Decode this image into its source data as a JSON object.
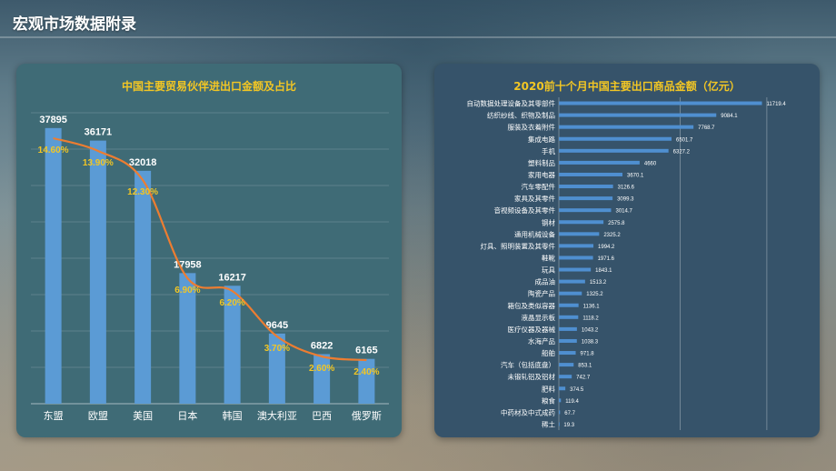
{
  "page": {
    "title": "宏观市场数据附录"
  },
  "colors": {
    "bar_left": "#5b9bd5",
    "line": "#ed7d31",
    "pct_label": "#f2c624",
    "bar_right": "#4f8fd0",
    "title": "#f2c624",
    "text": "#ffffff"
  },
  "chart_data": [
    {
      "type": "bar",
      "title": "中国主要贸易伙伴进出口金额及占比",
      "categories": [
        "东盟",
        "欧盟",
        "美国",
        "日本",
        "韩国",
        "澳大利亚",
        "巴西",
        "俄罗斯"
      ],
      "series": [
        {
          "values": [
            37895,
            36171,
            32018,
            17958,
            16217,
            9645,
            6822,
            6165
          ]
        },
        {
          "type": "line",
          "values": [
            14.6,
            13.9,
            12.3,
            6.9,
            6.2,
            3.7,
            2.6,
            2.4
          ]
        }
      ],
      "value_labels": [
        "37895",
        "36171",
        "32018",
        "17958",
        "16217",
        "9645",
        "6822",
        "6165"
      ],
      "pct_labels": [
        "14.60%",
        "13.90%",
        "12.30%",
        "6.90%",
        "6.20%",
        "3.70%",
        "2.60%",
        "2.40%"
      ],
      "ylim": [
        0,
        40000
      ],
      "pct_ylim": [
        0,
        16
      ],
      "grid": true
    },
    {
      "type": "bar",
      "orientation": "horizontal",
      "title": "2020前十个月中国主要出口商品金额（亿元）",
      "categories": [
        "自动数据处理设备及其零部件",
        "纺织纱线、织物及制品",
        "服装及衣着附件",
        "集成电路",
        "手机",
        "塑料制品",
        "家用电器",
        "汽车零配件",
        "家具及其零件",
        "音视频设备及其零件",
        "钢材",
        "通用机械设备",
        "灯具、照明装置及其零件",
        "鞋靴",
        "玩具",
        "成品油",
        "陶瓷产品",
        "箱包及类似容器",
        "液晶显示板",
        "医疗仪器及器械",
        "水海产品",
        "船舶",
        "汽车（包括底盘）",
        "未锻轧铝及铝材",
        "肥料",
        "粮食",
        "中药材及中式成药",
        "稀土"
      ],
      "values": [
        11719.4,
        9084.1,
        7768.7,
        6501.7,
        6327.2,
        4660,
        3670.1,
        3126.6,
        3099.3,
        3014.7,
        2575.8,
        2325.2,
        1994.2,
        1971.6,
        1843.1,
        1513.2,
        1325.2,
        1136.1,
        1118.2,
        1043.2,
        1038.3,
        971.8,
        853.1,
        742.7,
        374.5,
        119.4,
        67.7,
        19.3
      ],
      "value_labels": [
        "11719.4",
        "9084.1",
        "7768.7",
        "6501.7",
        "6327.2",
        "4660",
        "3670.1",
        "3126.6",
        "3099.3",
        "3014.7",
        "2575.8",
        "2325.2",
        "1994.2",
        "1971.6",
        "1843.1",
        "1513.2",
        "1325.2",
        "1136.1",
        "1118.2",
        "1043.2",
        "1038.3",
        "971.8",
        "853.1",
        "742.7",
        "374.5",
        "119.4",
        "67.7",
        "19.3"
      ],
      "xlim": [
        0,
        14000
      ],
      "grid": true
    }
  ]
}
